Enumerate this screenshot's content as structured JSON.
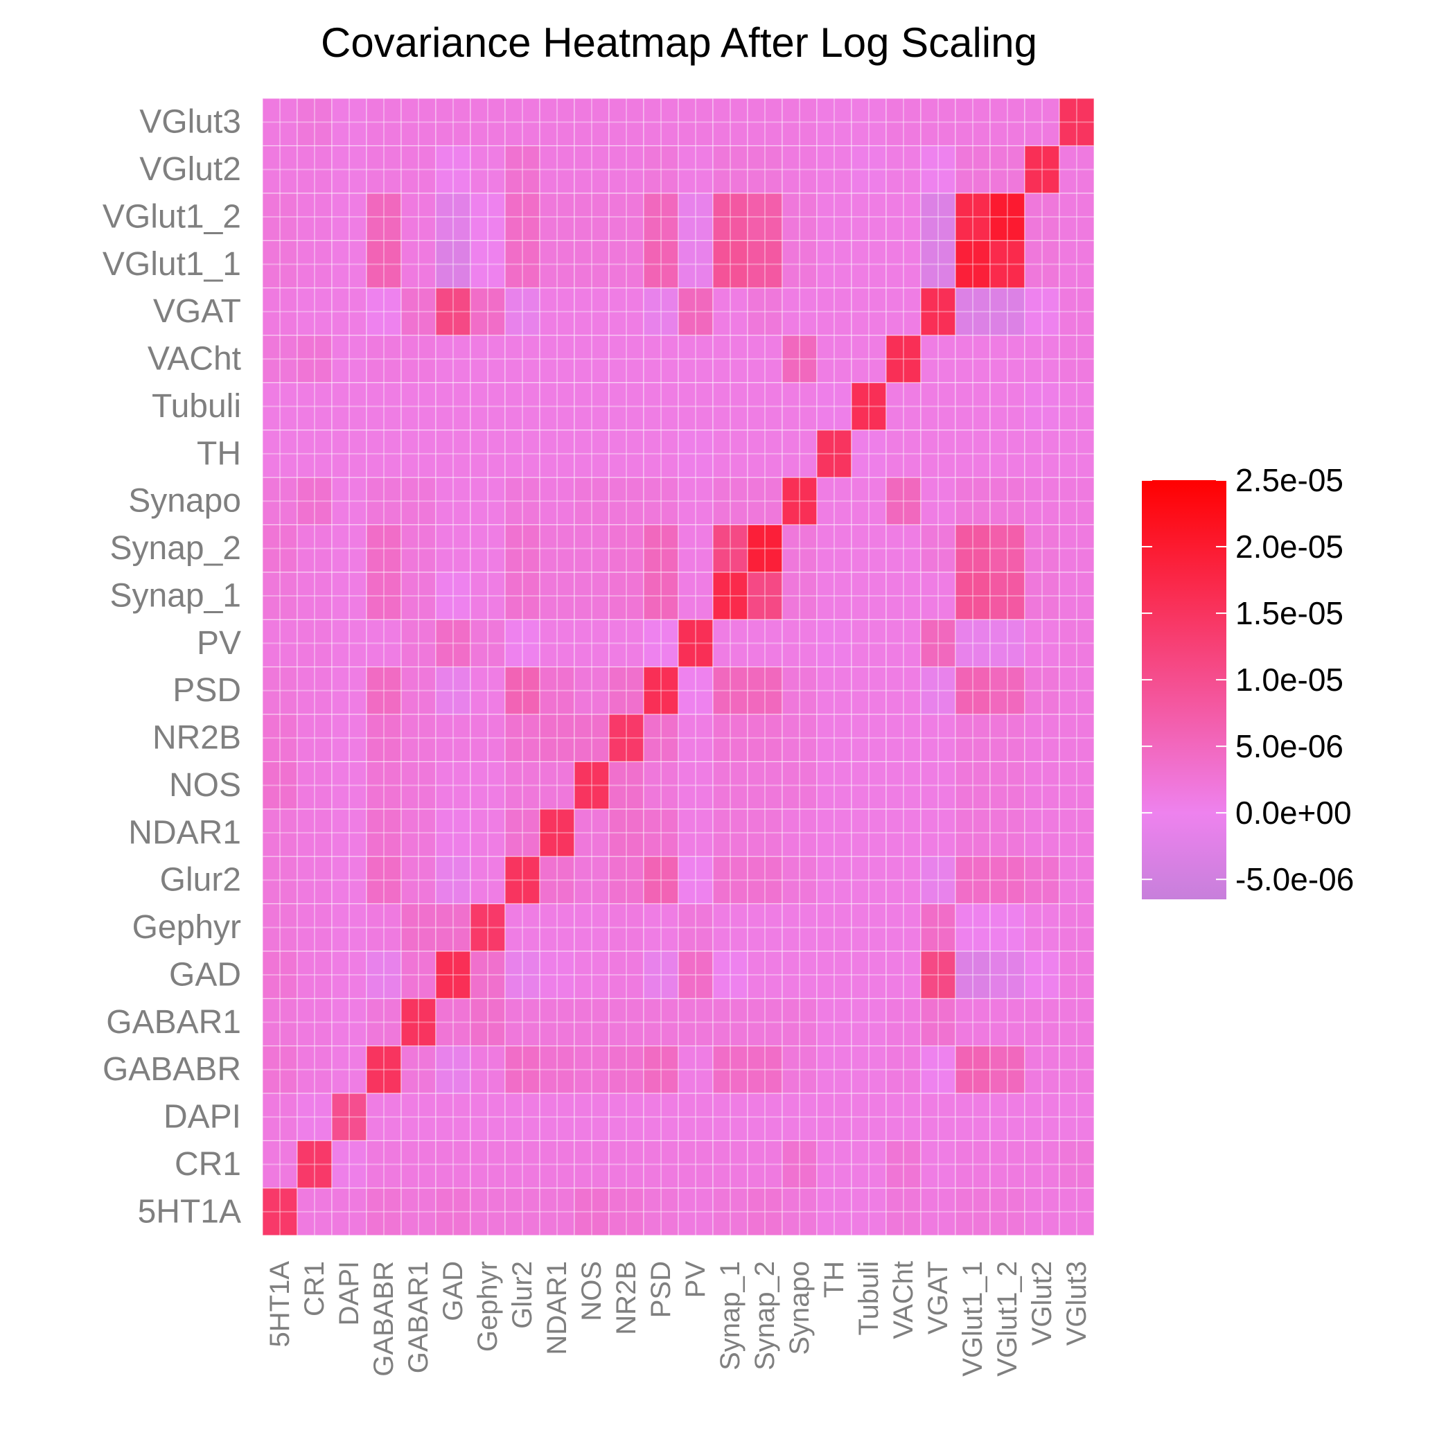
{
  "chart_data": {
    "type": "heatmap",
    "title": "Covariance Heatmap After Log Scaling",
    "xlabel": "",
    "ylabel": "",
    "labels": [
      "5HT1A",
      "CR1",
      "DAPI",
      "GABABR",
      "GABAR1",
      "GAD",
      "Gephyr",
      "Glur2",
      "NDAR1",
      "NOS",
      "NR2B",
      "PSD",
      "PV",
      "Synap_1",
      "Synap_2",
      "Synapo",
      "TH",
      "Tubuli",
      "VACht",
      "VGAT",
      "VGlut1_1",
      "VGlut1_2",
      "VGlut2",
      "VGlut3"
    ],
    "z": [
      [
        14,
        1.5,
        1.5,
        2.5,
        2,
        2.5,
        2,
        2,
        2,
        3,
        2.5,
        2,
        1.5,
        2,
        2.5,
        2,
        1,
        1,
        2,
        1.5,
        2,
        2,
        1.5,
        1.5
      ],
      [
        1.5,
        14,
        0.5,
        1.5,
        1.5,
        1.5,
        1.5,
        1.5,
        1.5,
        1.5,
        1.5,
        1.5,
        1.5,
        1.5,
        1.5,
        3,
        1,
        1,
        2.5,
        1,
        1.5,
        1.5,
        1.5,
        2
      ],
      [
        1.5,
        0.5,
        10,
        1,
        1,
        1,
        1,
        1,
        1,
        1,
        1,
        1,
        1,
        1,
        1,
        1,
        1,
        1,
        1,
        1,
        1,
        1,
        1,
        1
      ],
      [
        2.5,
        1.5,
        1,
        15,
        2,
        -1,
        1.5,
        4,
        3,
        2.5,
        3,
        4.5,
        1,
        4,
        4,
        2,
        1,
        1,
        1.5,
        0,
        6,
        5,
        1.5,
        1.5
      ],
      [
        2,
        1.5,
        1,
        2,
        15,
        2.5,
        3.5,
        2,
        2,
        2,
        2,
        2,
        2,
        2,
        2,
        2,
        1,
        1,
        1.5,
        3,
        1.5,
        1.5,
        1.5,
        1.5
      ],
      [
        2.5,
        1.5,
        1,
        -1,
        2.5,
        16,
        3.5,
        -1,
        0.5,
        1,
        1.5,
        -1,
        4,
        0,
        1,
        1,
        1,
        1,
        1,
        11,
        -3,
        -2,
        0,
        1.5
      ],
      [
        2,
        1.5,
        1,
        1.5,
        3.5,
        3.5,
        14,
        1,
        1,
        1,
        1.5,
        1,
        2,
        1,
        1,
        1,
        1,
        1,
        1,
        4,
        0,
        0,
        1,
        1.5
      ],
      [
        2,
        1.5,
        1,
        4,
        2,
        -1,
        1,
        15,
        3,
        2,
        3,
        6,
        0,
        3,
        3,
        2,
        1,
        1,
        1,
        -1,
        4,
        4,
        3,
        1.5
      ],
      [
        2,
        1.5,
        1,
        3,
        2,
        0.5,
        1,
        3,
        15,
        2,
        3.5,
        3,
        1,
        2,
        2,
        1.5,
        1,
        1,
        1,
        1,
        2,
        2,
        1.5,
        1.5
      ],
      [
        3,
        1.5,
        1,
        2.5,
        2,
        1,
        1,
        2,
        2,
        15,
        3.5,
        2,
        1,
        2,
        2,
        2,
        1,
        1,
        1,
        1,
        2,
        2,
        1.5,
        1.5
      ],
      [
        2.5,
        1.5,
        1,
        3,
        2,
        1.5,
        1.5,
        3,
        3.5,
        3.5,
        14,
        3.5,
        1,
        2.5,
        2.5,
        2,
        1,
        1,
        1,
        1,
        2,
        2,
        1.5,
        1.5
      ],
      [
        2,
        1.5,
        1,
        4.5,
        2,
        -1,
        1,
        6,
        3,
        2,
        3.5,
        16,
        0,
        5,
        5,
        2,
        1,
        1,
        1,
        -1,
        6,
        5,
        2,
        1.5
      ],
      [
        1.5,
        1.5,
        1,
        1,
        2,
        4,
        2,
        0,
        1,
        1,
        1,
        0,
        16,
        1,
        1,
        1,
        0.5,
        1,
        1,
        5,
        -1,
        -1,
        1,
        1.5
      ],
      [
        2,
        1.5,
        1,
        4,
        2,
        0,
        1,
        3,
        2,
        2,
        2.5,
        5,
        1,
        17,
        11,
        2,
        1,
        1,
        1,
        1,
        9,
        8,
        2,
        1.5
      ],
      [
        2.5,
        1.5,
        1,
        4,
        2,
        1,
        1,
        3,
        2,
        2,
        2.5,
        5,
        1,
        11,
        19,
        2,
        1,
        1,
        1,
        2,
        8,
        7,
        2,
        1.5
      ],
      [
        2,
        3,
        1,
        2,
        2,
        1,
        1,
        2,
        1.5,
        2,
        2,
        2,
        1,
        2,
        2,
        16,
        1,
        1,
        5,
        1,
        2,
        2,
        1.5,
        1.5
      ],
      [
        1,
        1,
        1,
        1,
        1,
        1,
        1,
        1,
        1,
        1,
        1,
        1,
        0.5,
        1,
        1,
        1,
        15,
        0.5,
        1,
        1,
        1,
        1,
        1,
        1
      ],
      [
        1,
        1,
        1,
        1,
        1,
        1,
        1,
        1,
        1,
        1,
        1,
        1,
        1,
        1,
        1,
        1,
        0.5,
        16,
        1,
        1,
        1,
        1,
        0.5,
        1
      ],
      [
        2,
        2.5,
        1,
        1.5,
        1.5,
        1,
        1,
        1,
        1,
        1,
        1,
        1,
        1,
        1,
        1,
        5,
        1,
        1,
        16,
        1,
        1,
        1,
        1,
        1.5
      ],
      [
        1.5,
        1,
        1,
        0,
        3,
        11,
        4,
        -1,
        1,
        1,
        1,
        -1,
        5,
        1,
        2,
        1,
        1,
        1,
        1,
        16,
        -3,
        -3,
        0,
        1.5
      ],
      [
        2,
        1.5,
        1,
        6,
        1.5,
        -3,
        0,
        4,
        2,
        2,
        2,
        6,
        -1,
        9,
        8,
        2,
        1,
        1,
        1,
        -3,
        19,
        17,
        2,
        1.5
      ],
      [
        2,
        1.5,
        1,
        5,
        1.5,
        -2,
        0,
        4,
        2,
        2,
        2,
        5,
        -1,
        8,
        7,
        2,
        1,
        1,
        1,
        -3,
        17,
        20,
        2,
        1.5
      ],
      [
        1.5,
        1.5,
        1,
        1.5,
        1.5,
        0,
        1,
        3,
        1.5,
        1.5,
        1.5,
        2,
        1,
        2,
        2,
        1.5,
        1,
        0.5,
        1,
        0,
        2,
        2,
        16,
        1.5
      ],
      [
        1.5,
        2,
        1,
        1.5,
        1.5,
        1.5,
        1.5,
        1.5,
        1.5,
        1.5,
        1.5,
        1.5,
        1.5,
        1.5,
        1.5,
        1.5,
        1,
        1,
        1.5,
        1.5,
        1.5,
        1.5,
        1.5,
        15
      ]
    ],
    "z_unit_scale": 1e-06,
    "legend": {
      "position": "right",
      "ticks": [
        "2.5e-05",
        "2.0e-05",
        "1.5e-05",
        "1.0e-05",
        "5.0e-06",
        "0.0e+00",
        "-5.0e-06"
      ],
      "tick_values": [
        25,
        20,
        15,
        10,
        5,
        0,
        -5
      ],
      "range": [
        -6.5,
        25
      ],
      "colors": {
        "low": "#c77fdb",
        "mid": "#ee82ee",
        "high": "#ff0000"
      }
    },
    "grid": true
  }
}
